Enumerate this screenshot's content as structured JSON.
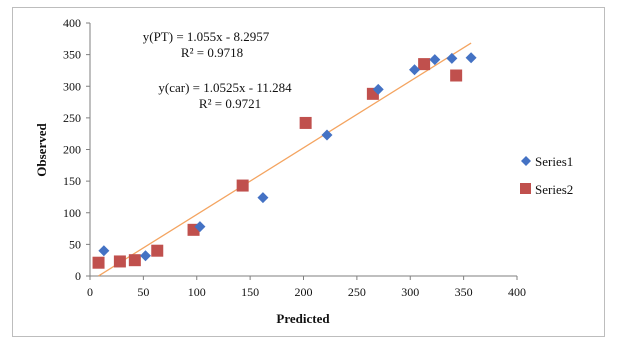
{
  "chart_data": {
    "type": "scatter",
    "xlabel": "Predicted",
    "ylabel": "Observed",
    "xlim": [
      0,
      400
    ],
    "ylim": [
      0,
      400
    ],
    "xticks": [
      0,
      50,
      100,
      150,
      200,
      250,
      300,
      350,
      400
    ],
    "yticks": [
      0,
      50,
      100,
      150,
      200,
      250,
      300,
      350,
      400
    ],
    "grid": false,
    "legend": "right",
    "series": [
      {
        "name": "Series1",
        "marker": "diamond",
        "color": "#4472c4",
        "points": [
          [
            13,
            40
          ],
          [
            52,
            32
          ],
          [
            103,
            78
          ],
          [
            162,
            124
          ],
          [
            222,
            223
          ],
          [
            270,
            295
          ],
          [
            304,
            326
          ],
          [
            323,
            342
          ],
          [
            339,
            344
          ],
          [
            357,
            345
          ]
        ]
      },
      {
        "name": "Series2",
        "marker": "square",
        "color": "#c0504d",
        "points": [
          [
            8,
            21
          ],
          [
            28,
            23
          ],
          [
            42,
            25
          ],
          [
            63,
            40
          ],
          [
            97,
            73
          ],
          [
            143,
            143
          ],
          [
            202,
            242
          ],
          [
            265,
            288
          ],
          [
            313,
            335
          ],
          [
            343,
            317
          ]
        ]
      }
    ],
    "trendline": {
      "color": "#f4a460",
      "x_range": [
        8,
        357
      ],
      "slope": 1.055,
      "intercept": -8.2957
    },
    "annotations": [
      {
        "line1": "y(PT) = 1.055x - 8.2957",
        "line2": "R² = 0.9718"
      },
      {
        "line1": "y(car) = 1.0525x - 11.284",
        "line2": "R² = 0.9721"
      }
    ]
  }
}
